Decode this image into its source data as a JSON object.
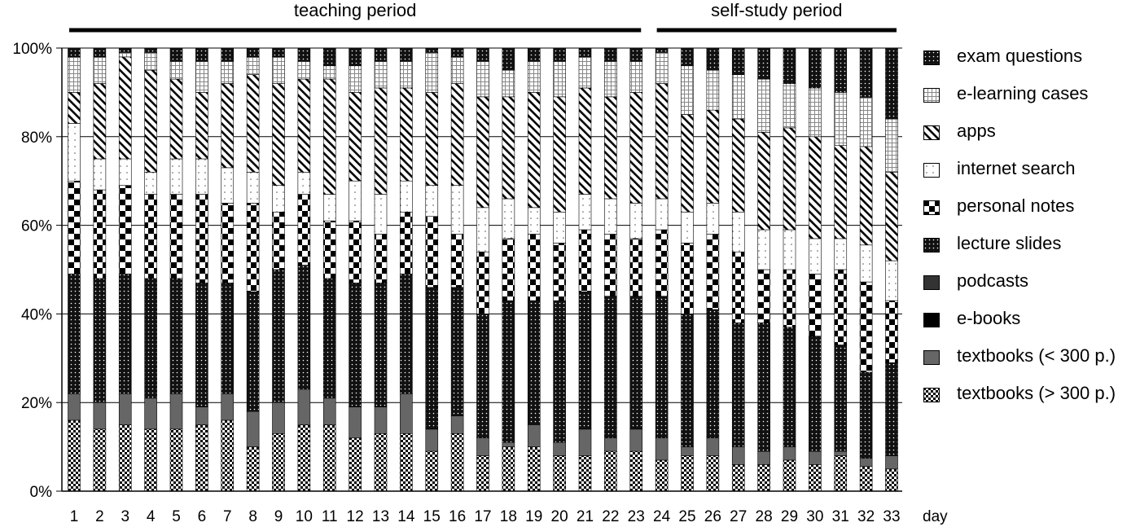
{
  "chart_data": {
    "type": "bar",
    "stacked": true,
    "xlabel": "day",
    "ylabel": "",
    "ylim": [
      0,
      100
    ],
    "y_ticks": [
      "0%",
      "20%",
      "40%",
      "60%",
      "80%",
      "100%"
    ],
    "grid": true,
    "legend_position": "right",
    "periods": [
      {
        "label": "teaching period",
        "days": [
          1,
          23
        ]
      },
      {
        "label": "self-study period",
        "days": [
          24,
          33
        ]
      }
    ],
    "categories": [
      "1",
      "2",
      "3",
      "4",
      "5",
      "6",
      "7",
      "8",
      "9",
      "10",
      "11",
      "12",
      "13",
      "14",
      "15",
      "16",
      "17",
      "18",
      "19",
      "20",
      "21",
      "22",
      "23",
      "24",
      "25",
      "26",
      "27",
      "28",
      "29",
      "30",
      "31",
      "32",
      "33"
    ],
    "series": [
      {
        "name": "textbooks (> 300 p.)",
        "pattern": "checker",
        "values": [
          16,
          14,
          15,
          14,
          14,
          15,
          16,
          10,
          13,
          15,
          15,
          12,
          13,
          13,
          9,
          13,
          8,
          10,
          10,
          8,
          8,
          9,
          9,
          7,
          8,
          8,
          6,
          6,
          7,
          6,
          8,
          6,
          5
        ]
      },
      {
        "name": "textbooks (< 300 p.)",
        "pattern": "gray",
        "values": [
          6,
          6,
          7,
          7,
          8,
          4,
          6,
          8,
          7,
          8,
          6,
          7,
          6,
          9,
          5,
          4,
          4,
          1,
          5,
          3,
          6,
          3,
          5,
          5,
          2,
          4,
          4,
          3,
          3,
          3,
          1,
          2,
          3
        ]
      },
      {
        "name": "e-books",
        "pattern": "black",
        "values": [
          0,
          0,
          0,
          0,
          0,
          0,
          0,
          0,
          0,
          0,
          0,
          0,
          0,
          0,
          0,
          0,
          0,
          0,
          0,
          0,
          0,
          0,
          0,
          0,
          0,
          0,
          0,
          0,
          0,
          0,
          0,
          0,
          0
        ]
      },
      {
        "name": "podcasts",
        "pattern": "darkgray",
        "values": [
          0,
          0,
          0,
          0,
          0,
          0,
          0,
          0,
          0,
          0,
          0,
          0,
          0,
          0,
          0,
          0,
          0,
          0,
          0,
          0,
          0,
          0,
          0,
          0,
          0,
          0,
          0,
          0,
          0,
          0,
          0,
          0,
          0
        ]
      },
      {
        "name": "lecture slides",
        "pattern": "dots-black",
        "values": [
          27,
          28,
          27,
          27,
          26,
          28,
          25,
          27,
          30,
          28,
          27,
          28,
          28,
          27,
          32,
          29,
          28,
          32,
          28,
          32,
          31,
          32,
          30,
          32,
          30,
          29,
          28,
          29,
          27,
          26,
          24,
          21,
          21
        ]
      },
      {
        "name": "personal notes",
        "pattern": "big-checker",
        "values": [
          21,
          20,
          20,
          19,
          19,
          20,
          18,
          20,
          13,
          16,
          13,
          14,
          11,
          14,
          16,
          12,
          14,
          14,
          15,
          13,
          14,
          14,
          13,
          15,
          16,
          17,
          16,
          12,
          13,
          14,
          17,
          22,
          14
        ]
      },
      {
        "name": "internet search",
        "pattern": "sparse-dots",
        "values": [
          13,
          7,
          6,
          5,
          8,
          8,
          8,
          7,
          6,
          5,
          6,
          9,
          9,
          7,
          7,
          11,
          10,
          9,
          6,
          7,
          8,
          8,
          8,
          7,
          7,
          7,
          9,
          9,
          9,
          8,
          7,
          9,
          9
        ]
      },
      {
        "name": "apps",
        "pattern": "diagonal",
        "values": [
          7,
          17,
          23,
          23,
          18,
          15,
          19,
          22,
          23,
          21,
          26,
          20,
          24,
          21,
          21,
          23,
          25,
          23,
          26,
          26,
          24,
          23,
          25,
          26,
          22,
          21,
          21,
          22,
          23,
          23,
          21,
          24,
          20
        ]
      },
      {
        "name": "e-learning cases",
        "pattern": "grid",
        "values": [
          8,
          6,
          1,
          4,
          4,
          7,
          5,
          4,
          6,
          4,
          3,
          6,
          6,
          6,
          9,
          6,
          8,
          6,
          7,
          8,
          7,
          8,
          7,
          7,
          11,
          9,
          10,
          12,
          10,
          11,
          12,
          12,
          12
        ]
      },
      {
        "name": "exam questions",
        "pattern": "dots-black",
        "values": [
          2,
          2,
          1,
          1,
          3,
          3,
          3,
          2,
          2,
          3,
          4,
          4,
          3,
          3,
          1,
          2,
          3,
          5,
          3,
          3,
          2,
          3,
          3,
          1,
          4,
          5,
          6,
          7,
          8,
          9,
          10,
          12,
          16
        ]
      }
    ]
  }
}
